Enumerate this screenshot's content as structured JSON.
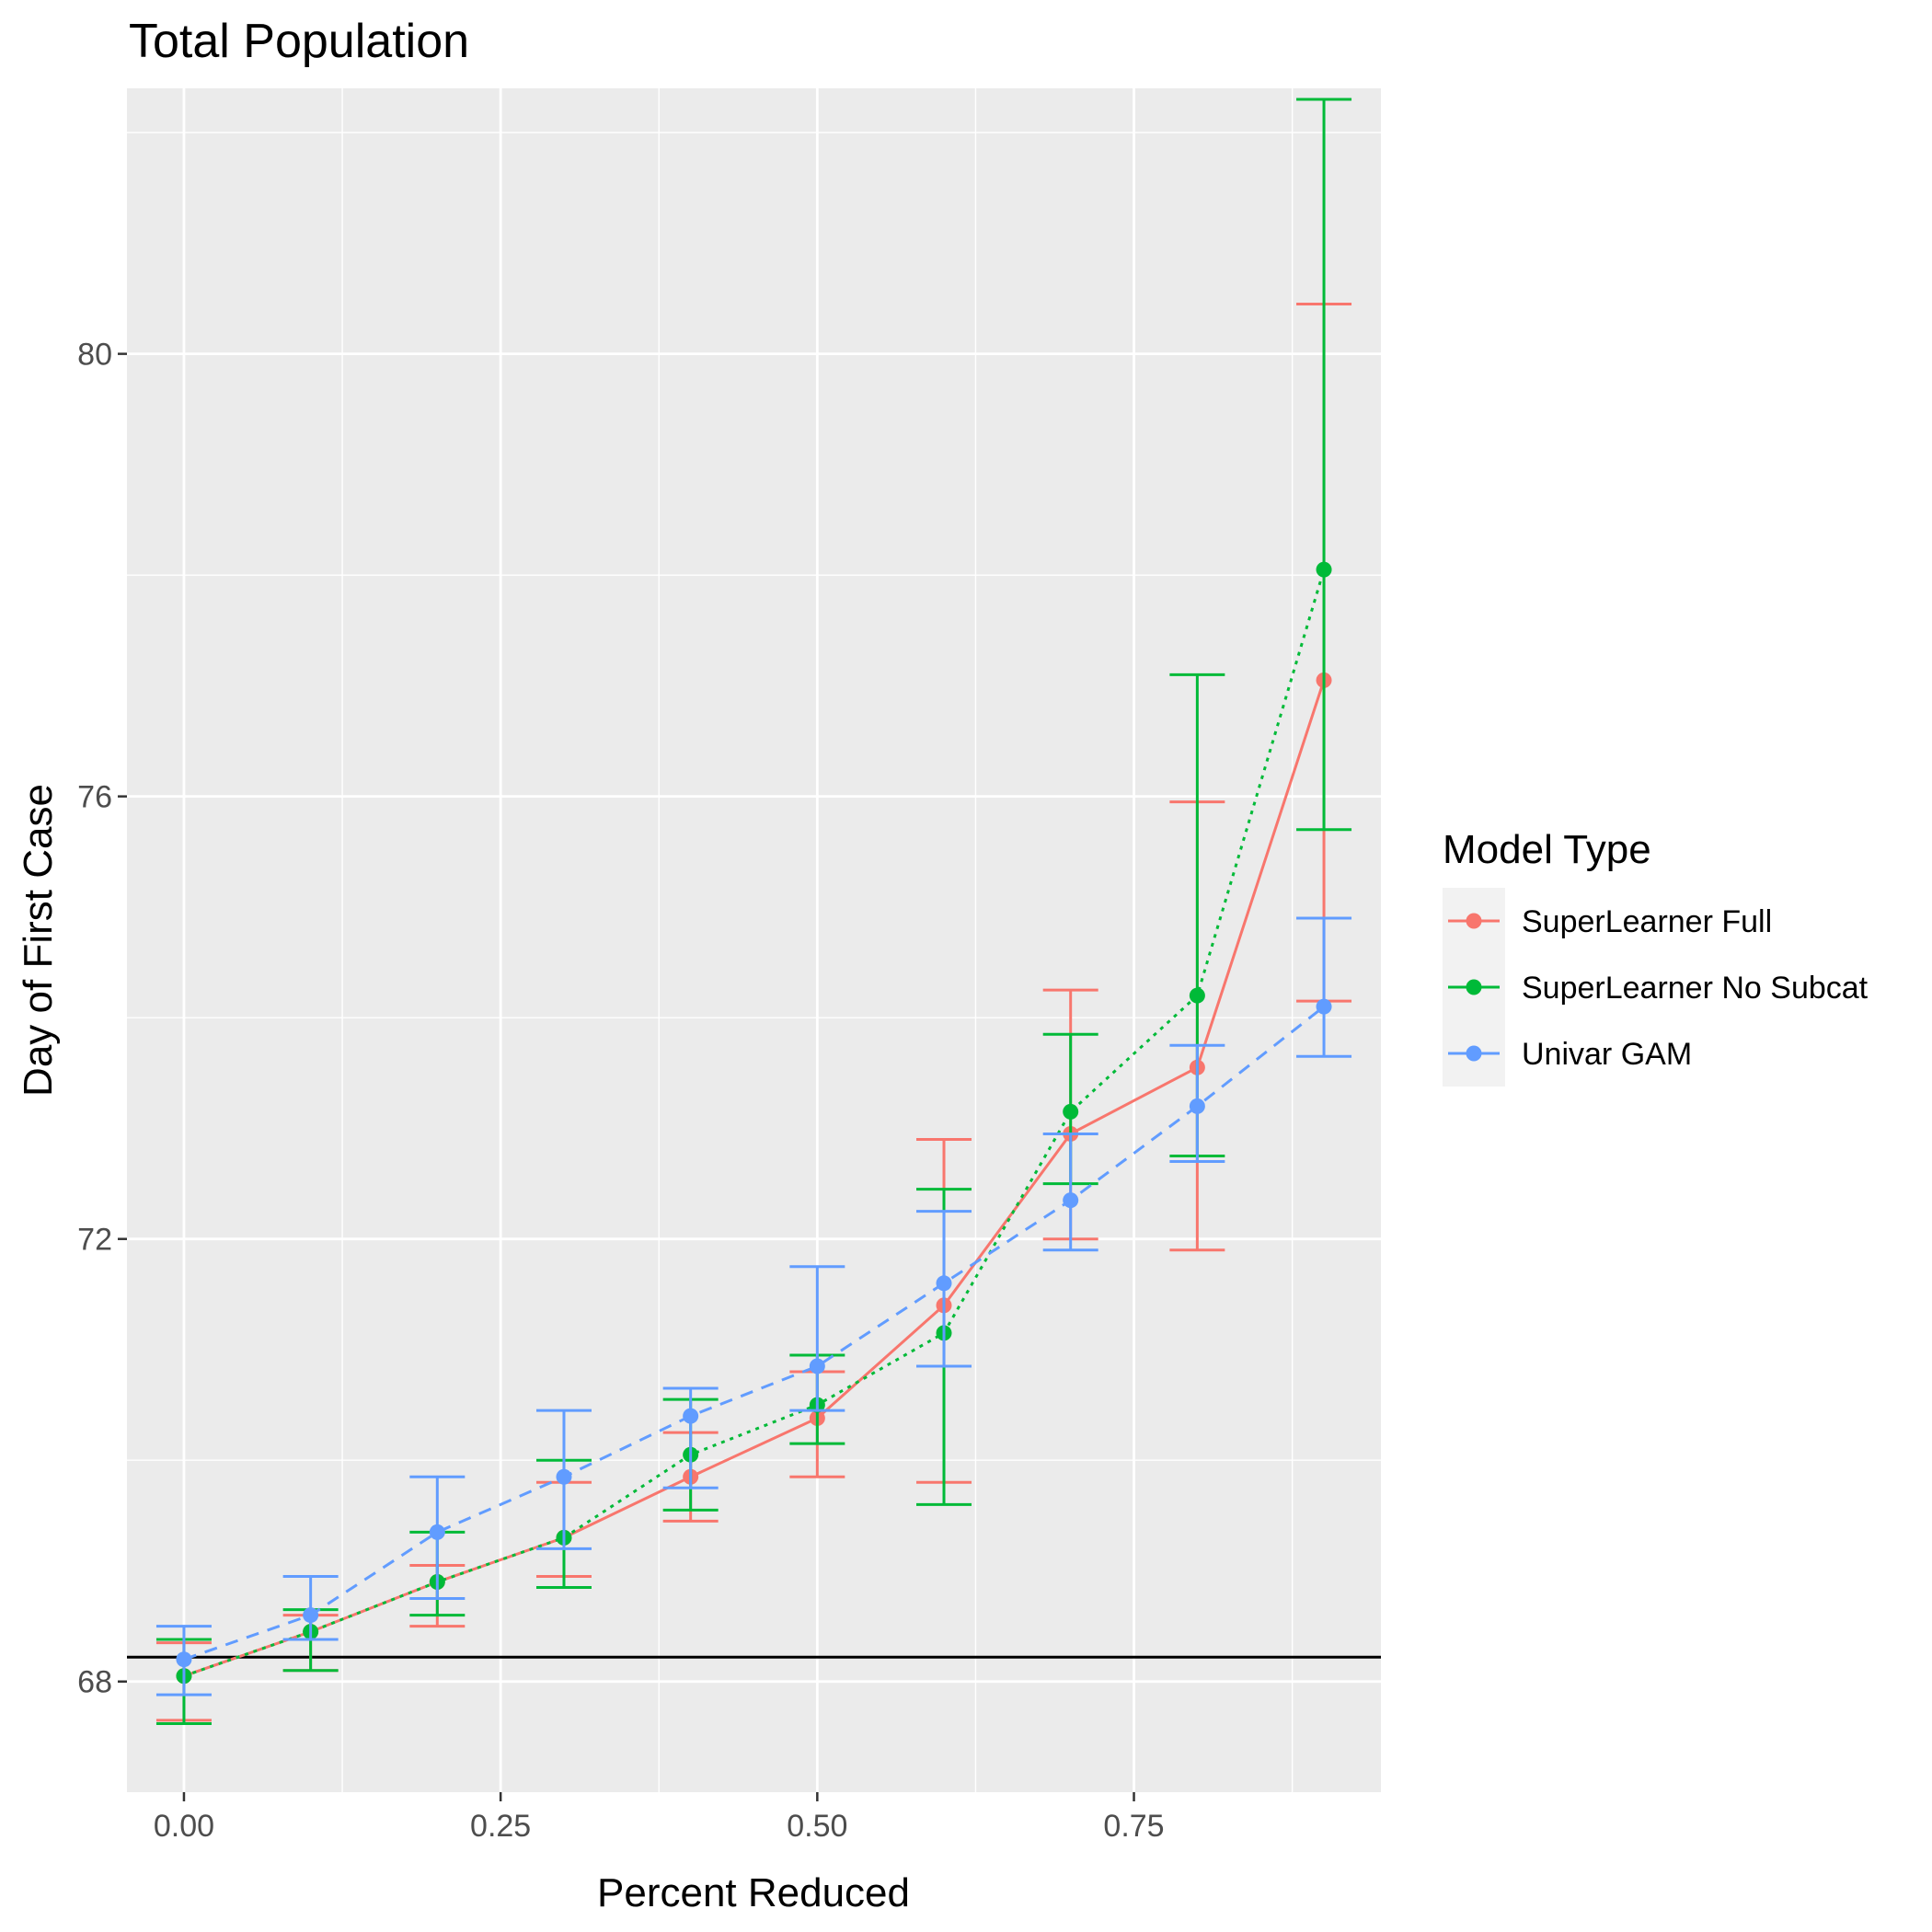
{
  "chart_data": {
    "type": "line",
    "title": "Total Population",
    "xlabel": "Percent Reduced",
    "ylabel": "Day of First Case",
    "xlim": [
      -0.045,
      0.945
    ],
    "ylim": [
      67.0,
      82.4
    ],
    "x_ticks": [
      0.0,
      0.25,
      0.5,
      0.75
    ],
    "x_tick_labels": [
      "0.00",
      "0.25",
      "0.50",
      "0.75"
    ],
    "y_ticks": [
      68,
      72,
      76,
      80
    ],
    "y_tick_labels": [
      "68",
      "72",
      "76",
      "80"
    ],
    "grid": true,
    "reference_line_y": 68.22,
    "legend": {
      "title": "Model Type",
      "position": "right"
    },
    "x": [
      0.0,
      0.1,
      0.2,
      0.3,
      0.4,
      0.5,
      0.6,
      0.7,
      0.8,
      0.9
    ],
    "series": [
      {
        "name": "SuperLearner Full",
        "color": "#F8766D",
        "dash": "solid",
        "values": [
          68.05,
          68.45,
          68.9,
          69.3,
          69.85,
          70.38,
          71.4,
          72.95,
          73.55,
          77.05
        ],
        "lower": [
          67.65,
          68.1,
          68.5,
          68.95,
          69.45,
          69.85,
          69.8,
          72.0,
          71.9,
          74.15
        ],
        "upper": [
          68.35,
          68.6,
          69.05,
          69.8,
          70.25,
          70.8,
          72.9,
          74.25,
          75.95,
          80.45
        ]
      },
      {
        "name": "SuperLearner No Subcat",
        "color": "#00BA38",
        "dash": "dotted",
        "values": [
          68.05,
          68.45,
          68.9,
          69.3,
          70.05,
          70.5,
          71.15,
          73.15,
          74.2,
          78.05
        ],
        "lower": [
          67.62,
          68.1,
          68.6,
          68.85,
          69.55,
          70.15,
          69.6,
          72.5,
          72.75,
          75.7
        ],
        "upper": [
          68.38,
          68.65,
          69.35,
          70.0,
          70.55,
          70.95,
          72.45,
          73.85,
          77.1,
          82.3
        ]
      },
      {
        "name": "Univar GAM",
        "color": "#619CFF",
        "dash": "dashed",
        "values": [
          68.2,
          68.6,
          69.35,
          69.85,
          70.4,
          70.85,
          71.6,
          72.35,
          73.2,
          74.1
        ],
        "lower": [
          67.88,
          68.38,
          68.75,
          69.2,
          69.75,
          70.45,
          70.85,
          71.9,
          72.7,
          73.65
        ],
        "upper": [
          68.5,
          68.95,
          69.85,
          70.45,
          70.65,
          71.75,
          72.25,
          72.95,
          73.75,
          74.9
        ]
      }
    ]
  }
}
